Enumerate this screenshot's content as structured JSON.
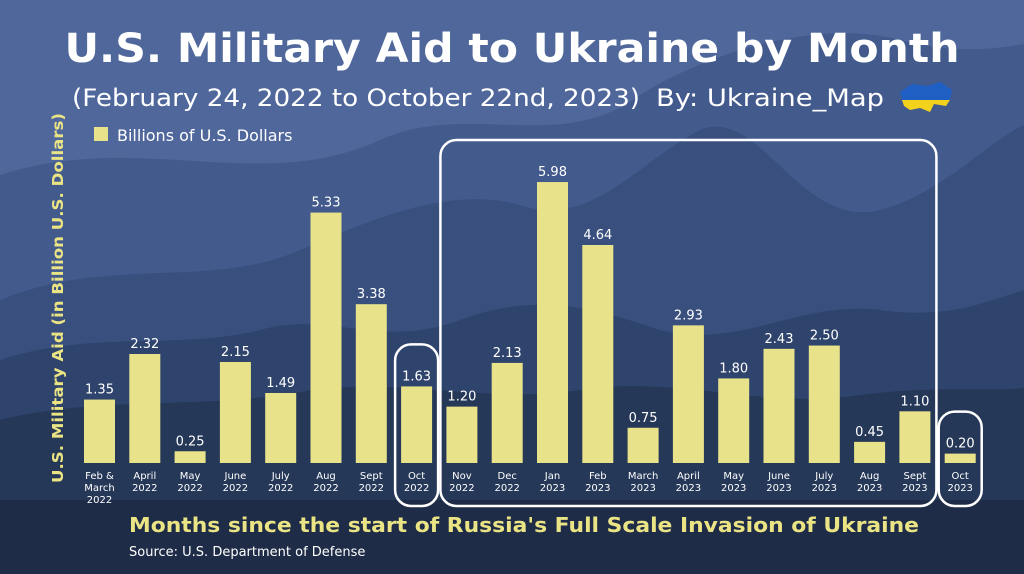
{
  "chart_data": {
    "type": "bar",
    "title": "U.S. Military Aid to Ukraine by Month",
    "subtitle": "(February 24, 2022 to October 22nd, 2023)",
    "byline": "By: Ukraine_Map",
    "legend": "Billions of U.S. Dollars",
    "legend_position": "top-left",
    "ylabel": "U.S. Military Aid (in Billion U.S. Dollars)",
    "xlabel": "Months since the start of Russia's Full Scale Invasion of Ukraine",
    "source": "Source: U.S. Department of Defense",
    "grid": false,
    "ylim": [
      0,
      6.3
    ],
    "categories": [
      [
        "Feb &",
        "March",
        "2022"
      ],
      [
        "April",
        "2022"
      ],
      [
        "May",
        "2022"
      ],
      [
        "June",
        "2022"
      ],
      [
        "July",
        "2022"
      ],
      [
        "Aug",
        "2022"
      ],
      [
        "Sept",
        "2022"
      ],
      [
        "Oct",
        "2022"
      ],
      [
        "Nov",
        "2022"
      ],
      [
        "Dec",
        "2022"
      ],
      [
        "Jan",
        "2023"
      ],
      [
        "Feb",
        "2023"
      ],
      [
        "March",
        "2023"
      ],
      [
        "April",
        "2023"
      ],
      [
        "May",
        "2023"
      ],
      [
        "June",
        "2023"
      ],
      [
        "July",
        "2023"
      ],
      [
        "Aug",
        "2023"
      ],
      [
        "Sept",
        "2023"
      ],
      [
        "Oct",
        "2023"
      ]
    ],
    "value_labels": [
      "1.35",
      "2.32",
      "0.25",
      "2.15",
      "1.49",
      "5.33",
      "3.38",
      "1.63",
      "1.20",
      "2.13",
      "5.98",
      "4.64",
      "0.75",
      "2.93",
      "1.80",
      "2.43",
      "2.50",
      "0.45",
      "1.10",
      "0.20"
    ],
    "values": [
      1.35,
      2.32,
      0.25,
      2.15,
      1.49,
      5.33,
      3.38,
      1.63,
      1.2,
      2.13,
      5.98,
      4.64,
      0.75,
      2.93,
      1.8,
      2.43,
      2.5,
      0.45,
      1.1,
      0.2
    ],
    "highlight_groups": [
      [
        7,
        7
      ],
      [
        8,
        18
      ],
      [
        19,
        19
      ]
    ],
    "colors": {
      "bar": "#e8e28a",
      "title": "#ffffff",
      "xlabel": "#ebe484",
      "ylabel": "#ebe484",
      "background_top": "#4f669b",
      "flag_blue": "#1f5fc4",
      "flag_yellow": "#f2d21b"
    }
  }
}
